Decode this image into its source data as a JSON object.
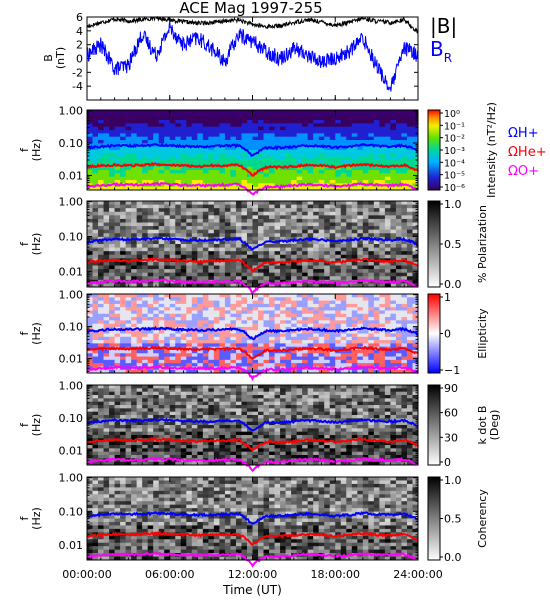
{
  "title": "ACE Mag 1997-255",
  "xaxis": {
    "ticks": [
      "00:00:00",
      "06:00:00",
      "12:00:00",
      "18:00:00",
      "24:00:00"
    ],
    "tick_hours": [
      0,
      6,
      12,
      18,
      24
    ],
    "label": "Time (UT)",
    "range_hours": [
      0,
      24
    ]
  },
  "colors": {
    "btotal": "#000000",
    "br": "#0000ff",
    "h": "#0000ff",
    "he": "#ff0000",
    "o": "#ff00ff"
  },
  "chart_data": [
    {
      "type": "line",
      "panel": "bfield",
      "ylabel": "B\n(nT)",
      "ylim": [
        -6,
        6
      ],
      "yticks": [
        "6",
        "4",
        "2",
        "0",
        "-2",
        "-4"
      ],
      "ytick_values": [
        6,
        4,
        2,
        0,
        -2,
        -4
      ],
      "series": [
        {
          "name": "|B|",
          "x_hours": [
            0,
            1,
            2,
            3,
            4,
            5,
            6,
            7,
            8,
            9,
            10,
            11,
            12,
            13,
            14,
            15,
            16,
            17,
            18,
            19,
            20,
            21,
            22,
            23,
            24
          ],
          "values": [
            4.6,
            5.2,
            5.7,
            5.4,
            5.6,
            5.9,
            5.6,
            5.3,
            5.1,
            5.2,
            5.4,
            5.6,
            4.9,
            4.6,
            4.7,
            5.2,
            5.6,
            5.3,
            4.8,
            5.2,
            5.8,
            5.4,
            5.2,
            5.6,
            3.8
          ]
        },
        {
          "name": "B",
          "subscript": "R",
          "x_hours": [
            0,
            1,
            2,
            3,
            4,
            5,
            6,
            7,
            8,
            9,
            10,
            11,
            12,
            13,
            14,
            15,
            16,
            17,
            18,
            19,
            20,
            21,
            22,
            23,
            24
          ],
          "values": [
            0.5,
            2.0,
            -1.5,
            -1.0,
            3.5,
            0.5,
            4.5,
            2.0,
            3.0,
            1.5,
            -0.5,
            3.5,
            2.5,
            1.0,
            0.0,
            1.5,
            0.5,
            -0.5,
            0.0,
            1.0,
            3.0,
            -1.0,
            -4.5,
            1.5,
            0.5
          ]
        }
      ]
    },
    {
      "type": "heatmap",
      "panel": "intensity",
      "ylabel": "f\n(Hz)",
      "yticks": [
        "1.00",
        "0.10",
        "0.01"
      ],
      "cbar_label": "Intensity (nT²/Hz)",
      "cbar_ticks": [
        "10⁰",
        "10⁻¹",
        "10⁻²",
        "10⁻³",
        "10⁻⁴",
        "10⁻⁵",
        "10⁻⁶"
      ],
      "legend": [
        "ΩH+",
        "ΩHe+",
        "ΩO+"
      ]
    },
    {
      "type": "heatmap",
      "panel": "polarization",
      "ylabel": "f\n(Hz)",
      "yticks": [
        "1.00",
        "0.10",
        "0.01"
      ],
      "cbar_label": "% Polarization",
      "cbar_ticks": [
        "1.0",
        "0.5",
        "0.0"
      ]
    },
    {
      "type": "heatmap",
      "panel": "ellipticity",
      "ylabel": "f\n(Hz)",
      "yticks": [
        "1.00",
        "0.10",
        "0.01"
      ],
      "cbar_label": "Ellipticity",
      "cbar_ticks": [
        "1",
        "0",
        "−1"
      ]
    },
    {
      "type": "heatmap",
      "panel": "kdotb",
      "ylabel": "f\n(Hz)",
      "yticks": [
        "1.00",
        "0.10",
        "0.01"
      ],
      "cbar_label": "k dot B\n(Deg)",
      "cbar_ticks": [
        "90",
        "60",
        "30",
        "0"
      ]
    },
    {
      "type": "heatmap",
      "panel": "coherency",
      "ylabel": "f\n(Hz)",
      "yticks": [
        "1.00",
        "0.10",
        "0.01"
      ],
      "cbar_label": "Coherency",
      "cbar_ticks": [
        "1.0",
        "0.5",
        "0.0"
      ]
    }
  ],
  "gyro_lines": {
    "x_hours": [
      0,
      1,
      2,
      3,
      4,
      5,
      6,
      7,
      8,
      9,
      10,
      11,
      12,
      13,
      14,
      15,
      16,
      17,
      18,
      19,
      20,
      21,
      22,
      23,
      24
    ],
    "h_hz": [
      0.07,
      0.078,
      0.085,
      0.082,
      0.083,
      0.088,
      0.085,
      0.08,
      0.078,
      0.078,
      0.082,
      0.084,
      0.04,
      0.072,
      0.072,
      0.078,
      0.084,
      0.08,
      0.073,
      0.078,
      0.088,
      0.082,
      0.078,
      0.084,
      0.058
    ],
    "he_hz": [
      0.018,
      0.02,
      0.021,
      0.02,
      0.021,
      0.022,
      0.021,
      0.02,
      0.019,
      0.02,
      0.02,
      0.021,
      0.01,
      0.018,
      0.018,
      0.019,
      0.021,
      0.02,
      0.018,
      0.02,
      0.022,
      0.02,
      0.019,
      0.021,
      0.014
    ],
    "o_hz": [
      0.0045,
      0.0049,
      0.0053,
      0.0051,
      0.0052,
      0.0055,
      0.0053,
      0.005,
      0.0049,
      0.0049,
      0.0051,
      0.0053,
      0.0025,
      0.0045,
      0.0045,
      0.0049,
      0.0053,
      0.005,
      0.0046,
      0.0049,
      0.0055,
      0.0051,
      0.0049,
      0.0053,
      0.0036
    ]
  }
}
